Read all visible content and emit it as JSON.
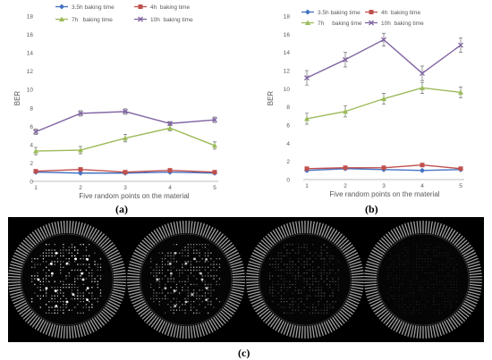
{
  "charts": [
    {
      "panel_label": "(a)",
      "chart_data": {
        "type": "line",
        "x": [
          1,
          2,
          3,
          4,
          5
        ],
        "xlabel": "Five random points on the material",
        "ylabel": "BER",
        "ylim": [
          0,
          18
        ],
        "yticks": [
          0,
          2,
          4,
          6,
          8,
          10,
          12,
          14,
          16,
          18
        ],
        "grid": false,
        "legend": "top, 2 columns",
        "series": [
          {
            "name": "3.5h baking time",
            "color": "#4472C4",
            "marker": "diamond",
            "values": [
              1.0,
              0.9,
              0.9,
              1.0,
              0.9
            ],
            "err": [
              0.1,
              0.1,
              0.1,
              0.1,
              0.1
            ]
          },
          {
            "name": "4h  baking time",
            "color": "#C0504D",
            "marker": "square",
            "values": [
              1.1,
              1.3,
              1.0,
              1.2,
              1.0
            ],
            "err": [
              0.1,
              0.1,
              0.1,
              0.1,
              0.1
            ]
          },
          {
            "name": "7h   baking time",
            "color": "#9BBB59",
            "marker": "triangle",
            "values": [
              3.3,
              3.4,
              4.7,
              5.8,
              3.9
            ],
            "err": [
              0.4,
              0.4,
              0.4,
              0.3,
              0.4
            ]
          },
          {
            "name": "10h  baking time",
            "color": "#8064A2",
            "marker": "cross",
            "values": [
              5.4,
              7.4,
              7.6,
              6.3,
              6.7
            ],
            "err": [
              0.3,
              0.3,
              0.3,
              0.2,
              0.3
            ]
          }
        ]
      }
    },
    {
      "panel_label": "(b)",
      "chart_data": {
        "type": "line",
        "x": [
          1,
          2,
          3,
          4,
          5
        ],
        "xlabel": "Five random points on the material",
        "ylabel": "BER",
        "ylim": [
          0,
          18
        ],
        "yticks": [
          0,
          2,
          4,
          6,
          8,
          10,
          12,
          14,
          16,
          18
        ],
        "grid": false,
        "legend": "top, 2 columns",
        "series": [
          {
            "name": "3.5h baking time",
            "color": "#4472C4",
            "marker": "diamond",
            "values": [
              1.0,
              1.2,
              1.1,
              1.0,
              1.1
            ],
            "err": [
              0.1,
              0.1,
              0.1,
              0.1,
              0.1
            ]
          },
          {
            "name": "4h  baking time",
            "color": "#C0504D",
            "marker": "square",
            "values": [
              1.2,
              1.3,
              1.3,
              1.6,
              1.2
            ],
            "err": [
              0.1,
              0.1,
              0.1,
              0.1,
              0.1
            ]
          },
          {
            "name": "7h     baking time",
            "color": "#9BBB59",
            "marker": "triangle",
            "values": [
              6.7,
              7.5,
              8.9,
              10.1,
              9.6
            ],
            "err": [
              0.6,
              0.6,
              0.6,
              0.6,
              0.6
            ]
          },
          {
            "name": "10h  baking time",
            "color": "#8064A2",
            "marker": "cross",
            "values": [
              11.2,
              13.2,
              15.4,
              11.7,
              14.8
            ],
            "err": [
              0.8,
              0.8,
              0.7,
              0.8,
              0.8
            ]
          }
        ]
      }
    }
  ],
  "image_panel": {
    "panel_label": "(c)",
    "discs": [
      {
        "bit_brightness": 1.0
      },
      {
        "bit_brightness": 0.75
      },
      {
        "bit_brightness": 0.35
      },
      {
        "bit_brightness": 0.12
      }
    ]
  },
  "colors": {
    "axis": "#BFBFBF",
    "text": "#595959",
    "errorbar": "#7F7F7F",
    "panel_bg": "#000000",
    "spoke": "#BDBDBD"
  }
}
